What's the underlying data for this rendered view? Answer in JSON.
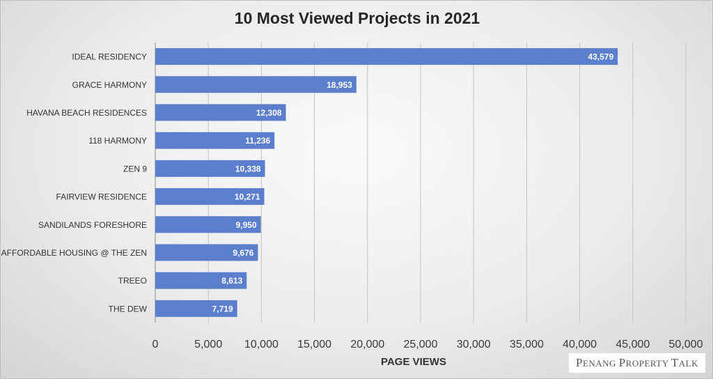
{
  "chart_data": {
    "type": "bar",
    "orientation": "horizontal",
    "title": "10 Most Viewed Projects in 2021",
    "xlabel": "PAGE VIEWS",
    "ylabel": "",
    "categories": [
      "IDEAL RESIDENCY",
      "GRACE HARMONY",
      "HAVANA BEACH RESIDENCES",
      "118 HARMONY",
      "ZEN 9",
      "FAIRVIEW RESIDENCE",
      "SANDILANDS FORESHORE",
      "AFFORDABLE HOUSING @ THE ZEN",
      "TREEO",
      "THE DEW"
    ],
    "values": [
      43579,
      18953,
      12308,
      11236,
      10338,
      10271,
      9950,
      9676,
      8613,
      7719
    ],
    "value_labels": [
      "43,579",
      "18,953",
      "12,308",
      "11,236",
      "10,338",
      "10,271",
      "9,950",
      "9,676",
      "8,613",
      "7,719"
    ],
    "xlim": [
      0,
      50000
    ],
    "ticks": [
      0,
      5000,
      10000,
      15000,
      20000,
      25000,
      30000,
      35000,
      40000,
      45000,
      50000
    ],
    "tick_labels": [
      "0",
      "5,000",
      "10,000",
      "15,000",
      "20,000",
      "25,000",
      "30,000",
      "35,000",
      "40,000",
      "45,000",
      "50,000"
    ],
    "grid": "vertical",
    "bar_color": "#5b7fcc"
  },
  "watermark": {
    "text": "Penang Property Talk",
    "parts": [
      {
        "big": "P",
        "small": "ENANG "
      },
      {
        "big": "P",
        "small": "ROPERTY "
      },
      {
        "big": "T",
        "small": "ALK"
      }
    ]
  }
}
